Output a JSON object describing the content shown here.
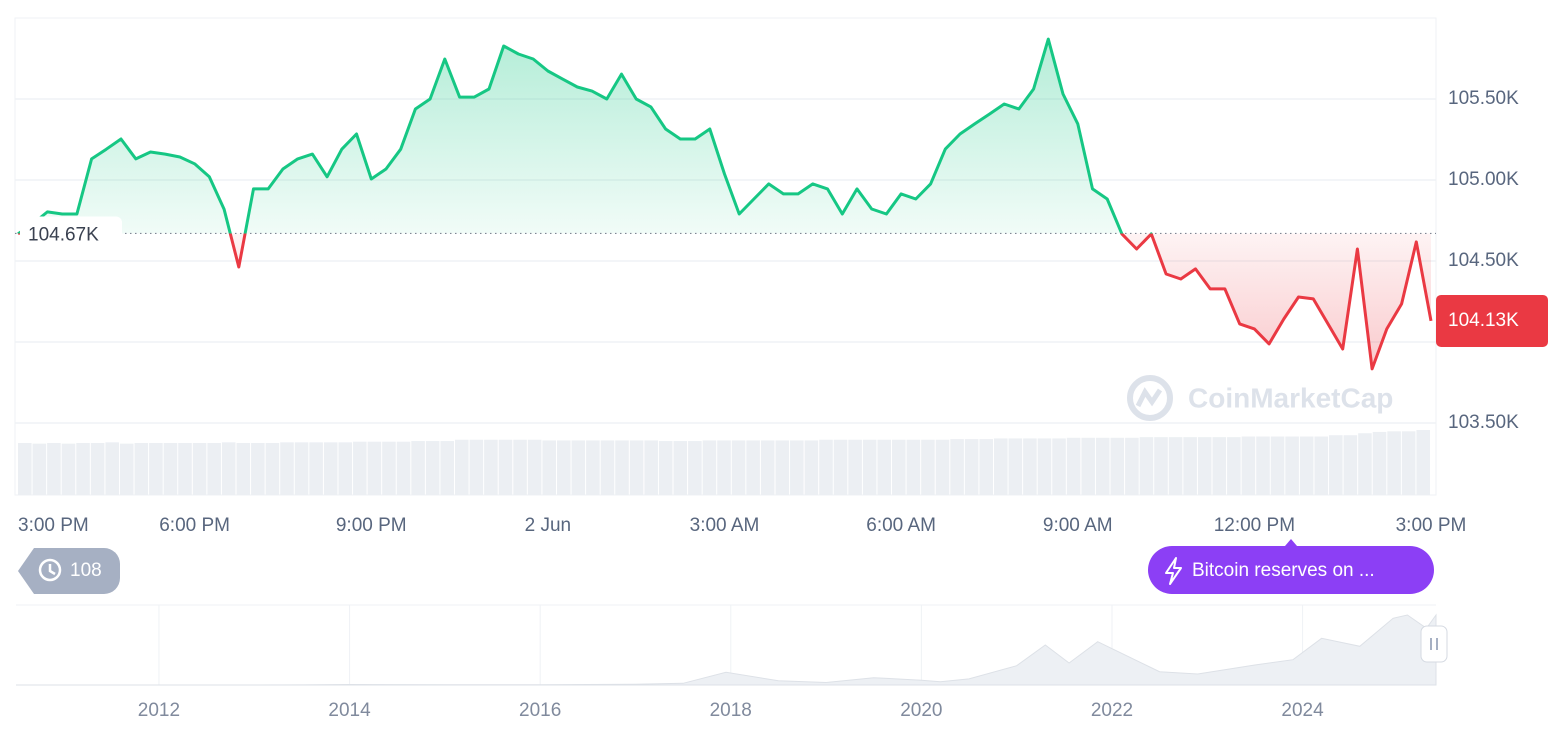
{
  "chart_data": [
    {
      "type": "line",
      "values": [
        104667,
        104729,
        104803,
        104790,
        104790,
        105130,
        105190,
        105253,
        105130,
        105173,
        105160,
        105142,
        105100,
        105020,
        104820,
        104463,
        104945,
        104945,
        105068,
        105130,
        105160,
        105020,
        105190,
        105284,
        105006,
        105068,
        105190,
        105438,
        105500,
        105747,
        105512,
        105512,
        105562,
        105827,
        105778,
        105747,
        105673,
        105623,
        105574,
        105549,
        105500,
        105654,
        105500,
        105451,
        105315,
        105253,
        105253,
        105315,
        105037,
        104790,
        104883,
        104976,
        104914,
        104914,
        104976,
        104945,
        104790,
        104945,
        104821,
        104790,
        104914,
        104883,
        104976,
        105191,
        105284,
        105346,
        105407,
        105469,
        105438,
        105562,
        105870,
        105531,
        105346,
        104945,
        104883,
        104667,
        104574,
        104667,
        104420,
        104389,
        104451,
        104328,
        104328,
        104112,
        104081,
        103988,
        104142,
        104278,
        104266,
        104112,
        103957,
        104574,
        103834,
        104081,
        104235,
        104618,
        104130
      ],
      "xlim": [
        0,
        96
      ],
      "xticks": [
        {
          "value": 0,
          "label": "3:00 PM"
        },
        {
          "value": 12,
          "label": "6:00 PM"
        },
        {
          "value": 24,
          "label": "9:00 PM"
        },
        {
          "value": 36,
          "label": "2 Jun"
        },
        {
          "value": 48,
          "label": "3:00 AM"
        },
        {
          "value": 60,
          "label": "6:00 AM"
        },
        {
          "value": 72,
          "label": "9:00 AM"
        },
        {
          "value": 84,
          "label": "12:00 PM"
        },
        {
          "value": 96,
          "label": "3:00 PM"
        }
      ],
      "ylim": [
        103500,
        106000
      ],
      "yticks": [
        {
          "value": 103500,
          "label": "103.50K"
        },
        {
          "value": 104000,
          "label": "104.00K"
        },
        {
          "value": 104500,
          "label": "104.50K"
        },
        {
          "value": 105000,
          "label": "105.00K"
        },
        {
          "value": 105500,
          "label": "105.50K"
        }
      ],
      "grid": true,
      "baseline": {
        "value": 104670,
        "label": "104.67K"
      },
      "current": {
        "value": 104130,
        "label": "104.13K"
      },
      "up_color": "#16c784",
      "down_color": "#ea3943",
      "volume": [
        80,
        79,
        80,
        79,
        80,
        80,
        81,
        79,
        80,
        80,
        80,
        80,
        80,
        80,
        81,
        80,
        80,
        80,
        81,
        81,
        81,
        81,
        81,
        82,
        82,
        82,
        82,
        83,
        83,
        83,
        85,
        85,
        85,
        85,
        85,
        85,
        84,
        84,
        84,
        84,
        84,
        84,
        84,
        84,
        83,
        83,
        83,
        84,
        84,
        84,
        84,
        84,
        84,
        84,
        84,
        85,
        85,
        85,
        85,
        85,
        85,
        85,
        85,
        85,
        86,
        86,
        86,
        87,
        87,
        87,
        87,
        87,
        88,
        88,
        88,
        88,
        88,
        89,
        89,
        89,
        89,
        89,
        89,
        89,
        90,
        90,
        90,
        90,
        90,
        90,
        92,
        92,
        95,
        97,
        98,
        98,
        100
      ],
      "volume_ylim": [
        0,
        100
      ],
      "volume_color": "#eceff3"
    },
    {
      "type": "area",
      "x": [
        2010.5,
        2011.5,
        2012.5,
        2013.5,
        2014,
        2015,
        2016,
        2017,
        2017.5,
        2017.95,
        2018.5,
        2019,
        2019.5,
        2020,
        2020.2,
        2020.5,
        2021,
        2021.3,
        2021.55,
        2021.85,
        2022.5,
        2022.9,
        2023.5,
        2023.9,
        2024.2,
        2024.6,
        2024.95,
        2025.1,
        2025.3,
        2025.4
      ],
      "values": [
        0,
        15,
        7,
        100,
        800,
        250,
        400,
        1000,
        2500,
        19000,
        6500,
        3700,
        11000,
        7200,
        5000,
        9200,
        29000,
        60000,
        33000,
        65000,
        20000,
        16500,
        30000,
        38000,
        70000,
        58000,
        100000,
        105000,
        85000,
        105000
      ],
      "xlim": [
        2010.5,
        2025.4
      ],
      "ylim": [
        0,
        120000
      ],
      "xticks": [
        2012,
        2014,
        2016,
        2018,
        2020,
        2022,
        2024
      ],
      "color": "#edf0f4"
    }
  ],
  "ui": {
    "history_count": 108,
    "news_badge": "Bitcoin reserves on ...",
    "watermark": "CoinMarketCap"
  }
}
